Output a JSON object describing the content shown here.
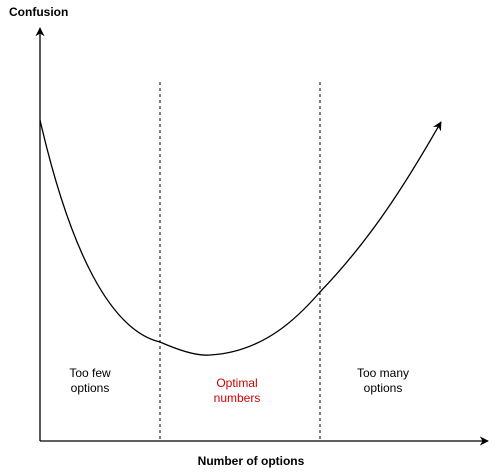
{
  "y_axis_title": "Confusion",
  "x_axis_title": "Number of options",
  "regions": [
    {
      "line1": "Too few",
      "line2": "options",
      "highlight": false
    },
    {
      "line1": "Optimal",
      "line2": "numbers",
      "highlight": true
    },
    {
      "line1": "Too many",
      "line2": "options",
      "highlight": false
    }
  ],
  "colors": {
    "axis": "#000000",
    "curve": "#000000",
    "divider": "#000000",
    "highlight_text": "#cc0000"
  }
}
